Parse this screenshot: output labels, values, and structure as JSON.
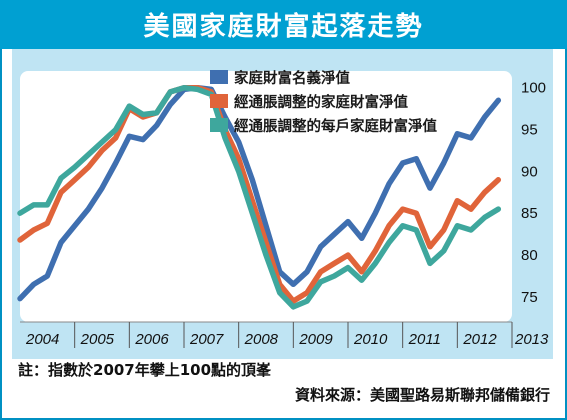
{
  "header": {
    "title": "美國家庭財富起落走勢"
  },
  "footer": {
    "note": "註：指數於2007年攀上100點的頂峯",
    "source": "資料來源：美國聖路易斯聯邦儲備銀行"
  },
  "colors": {
    "title_bar": "#00a0d2",
    "panel_bg": "#bfe4f3",
    "plot_bg": "#ffffff",
    "series_blue": "#3f6fb0",
    "series_orange": "#e0643a",
    "series_teal": "#3ea79d"
  },
  "chart_data": {
    "type": "line",
    "title": "美國家庭財富起落走勢",
    "xlabel": "",
    "ylabel": "",
    "ylim": [
      72,
      102
    ],
    "xlim": [
      2004.0,
      2013.0
    ],
    "yticks": [
      75,
      80,
      85,
      90,
      95,
      100
    ],
    "xticks": [
      "2004",
      "2005",
      "2006",
      "2007",
      "2008",
      "2009",
      "2010",
      "2011",
      "2012",
      "2013"
    ],
    "grid": false,
    "legend_position": "top-center",
    "x": [
      2004.0,
      2004.25,
      2004.5,
      2004.75,
      2005.0,
      2005.25,
      2005.5,
      2005.75,
      2006.0,
      2006.25,
      2006.5,
      2006.75,
      2007.0,
      2007.25,
      2007.5,
      2007.75,
      2008.0,
      2008.25,
      2008.5,
      2008.75,
      2009.0,
      2009.25,
      2009.5,
      2009.75,
      2010.0,
      2010.25,
      2010.5,
      2010.75,
      2011.0,
      2011.25,
      2011.5,
      2011.75,
      2012.0,
      2012.25,
      2012.5,
      2012.75
    ],
    "series": [
      {
        "name": "家庭財富名義淨值",
        "color": "#3f6fb0",
        "values": [
          74.8,
          76.5,
          77.5,
          81.5,
          83.5,
          85.5,
          88.0,
          91.0,
          94.2,
          93.8,
          95.5,
          98.0,
          99.8,
          100.0,
          99.8,
          96.5,
          93.5,
          89.0,
          83.5,
          78.0,
          76.5,
          78.0,
          81.0,
          82.5,
          84.0,
          82.0,
          85.0,
          88.5,
          91.0,
          91.5,
          88.0,
          91.0,
          94.5,
          94.0,
          96.5,
          98.5
        ]
      },
      {
        "name": "經通脹調整的家庭財富淨值",
        "color": "#e0643a",
        "values": [
          81.8,
          83.0,
          83.8,
          87.5,
          89.0,
          90.5,
          92.5,
          94.0,
          97.5,
          96.5,
          97.0,
          99.5,
          100.0,
          100.0,
          99.5,
          95.0,
          91.5,
          86.5,
          81.5,
          76.5,
          74.5,
          75.5,
          78.0,
          79.0,
          80.0,
          78.0,
          80.5,
          83.5,
          85.5,
          85.0,
          81.0,
          83.0,
          86.5,
          85.5,
          87.5,
          89.0
        ]
      },
      {
        "name": "經通脹調整的每戶家庭財富淨值",
        "color": "#3ea79d",
        "values": [
          85.0,
          86.0,
          86.0,
          89.2,
          90.5,
          92.0,
          93.5,
          95.0,
          97.8,
          96.8,
          97.0,
          99.5,
          100.0,
          99.8,
          99.2,
          94.0,
          90.0,
          85.0,
          80.0,
          75.5,
          73.8,
          74.5,
          76.8,
          77.5,
          78.5,
          77.0,
          79.0,
          81.5,
          83.5,
          83.0,
          79.0,
          80.5,
          83.5,
          83.0,
          84.5,
          85.5
        ]
      }
    ]
  }
}
